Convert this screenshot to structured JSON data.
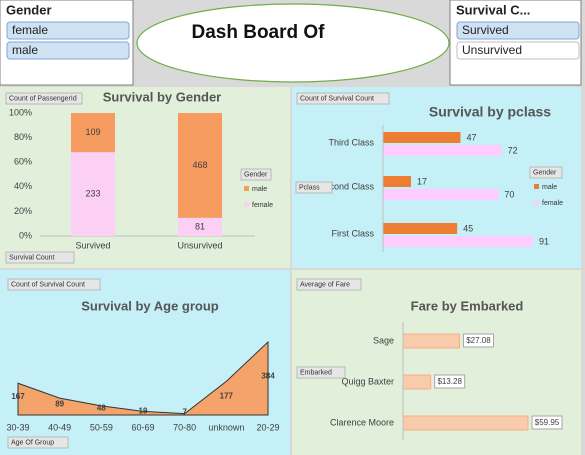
{
  "header": {
    "title": "Dash Board Of"
  },
  "slicers": [
    {
      "title": "Gender",
      "items": [
        "female",
        "male"
      ]
    },
    {
      "title": "Survival C...",
      "items": [
        "Survived",
        "Unsurvived"
      ]
    }
  ],
  "chart_data": [
    {
      "type": "bar",
      "stacked": "percent",
      "title": "Survival by Gender",
      "categories": [
        "Survived",
        "Unsurvived"
      ],
      "series": [
        {
          "name": "female",
          "color": "#fccff5",
          "values": [
            233,
            81
          ]
        },
        {
          "name": "male",
          "color": "#f79c60",
          "values": [
            109,
            468
          ]
        }
      ],
      "ylim": [
        0,
        100
      ],
      "yticks": [
        {
          "value": 0,
          "label": "0%"
        },
        {
          "value": 20,
          "label": "20%"
        },
        {
          "value": 40,
          "label": "40%"
        },
        {
          "value": 60,
          "label": "60%"
        },
        {
          "value": 80,
          "label": "80%"
        },
        {
          "value": 100,
          "label": "100%"
        }
      ],
      "legend_title": "Gender",
      "legend": "right",
      "field_buttons": [
        "Count of PassengerId",
        "Survival Count"
      ]
    },
    {
      "type": "hbar",
      "title": "Survival by pclass",
      "categories": [
        "Third Class",
        "Second Class",
        "First Class"
      ],
      "series": [
        {
          "name": "male",
          "color": "#ed7d31",
          "values": [
            47,
            17,
            45
          ]
        },
        {
          "name": "female",
          "color": "#ffccff",
          "values": [
            72,
            70,
            91
          ]
        }
      ],
      "legend_title": "Gender",
      "legend": "right",
      "field_buttons": [
        "Count of Survival Count",
        "Pclass"
      ]
    },
    {
      "type": "area",
      "title": "Survival by Age group",
      "categories": [
        "30-39",
        "40-49",
        "50-59",
        "60-69",
        "70-80",
        "unknown",
        "20-29"
      ],
      "values": [
        167,
        89,
        48,
        19,
        7,
        177,
        384
      ],
      "color": "#f4a46a",
      "field_buttons": [
        "Count of Survival Count",
        "Age Of Group"
      ]
    },
    {
      "type": "hbar",
      "title": "Fare by Embarked",
      "categories": [
        "Sage",
        "Quigg Baxter",
        "Clarence Moore"
      ],
      "values": [
        27.08,
        13.28,
        59.95
      ],
      "value_labels": [
        "$27.08",
        "$13.28",
        "$59.95"
      ],
      "color": "#f8cbad",
      "field_buttons": [
        "Average of Fare",
        "Embarked"
      ]
    }
  ]
}
